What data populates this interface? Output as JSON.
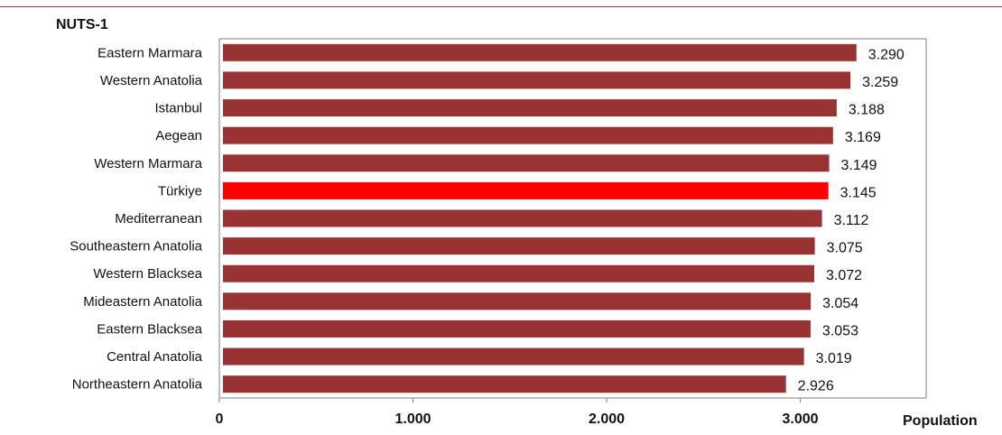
{
  "chart_data": {
    "type": "bar",
    "orientation": "horizontal",
    "title": "NUTS-1",
    "xlabel": "Population",
    "ylabel": "",
    "xlim": [
      0,
      3650
    ],
    "xticks": [
      0,
      1000,
      2000,
      3000
    ],
    "xtick_labels": [
      "0",
      "1.000",
      "2.000",
      "3.000"
    ],
    "grid": false,
    "categories": [
      "Eastern Marmara",
      "Western Anatolia",
      "Istanbul",
      "Aegean",
      "Western Marmara",
      "Türkiye",
      "Mediterranean",
      "Southeastern Anatolia",
      "Western Blacksea",
      "Mideastern Anatolia",
      "Eastern Blacksea",
      "Central Anatolia",
      "Northeastern Anatolia"
    ],
    "values": [
      3290,
      3259,
      3188,
      3169,
      3149,
      3145,
      3112,
      3075,
      3072,
      3054,
      3053,
      3019,
      2926
    ],
    "value_labels": [
      "3.290",
      "3.259",
      "3.188",
      "3.169",
      "3.149",
      "3.145",
      "3.112",
      "3.075",
      "3.072",
      "3.054",
      "3.053",
      "3.019",
      "2.926"
    ],
    "highlight": "Türkiye",
    "colors": {
      "bar": "#993333",
      "highlight": "#ff0000",
      "frame": "#7f7f7f",
      "rule": "#8b3a3a"
    }
  }
}
